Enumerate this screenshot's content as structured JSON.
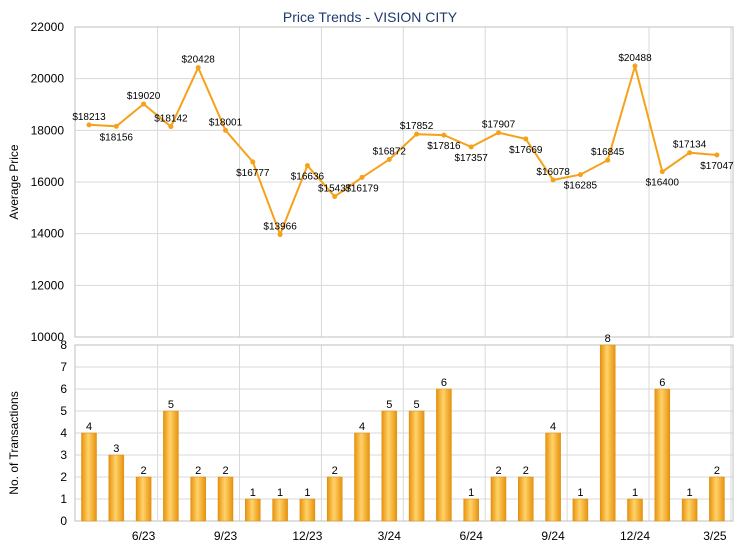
{
  "chart_data": [
    {
      "type": "line",
      "title": "Price Trends - VISION CITY",
      "ylabel": "Average Price",
      "ylim": [
        10000,
        22000
      ],
      "yticks": [
        10000,
        12000,
        14000,
        16000,
        18000,
        20000,
        22000
      ],
      "grid": true,
      "color": "#f5a21a",
      "series": [
        {
          "values": [
            18213,
            18156,
            19020,
            18142,
            20428,
            18001,
            16777,
            13966,
            16636,
            15437,
            16179,
            16872,
            17852,
            17816,
            17357,
            17907,
            17669,
            16078,
            16285,
            16845,
            20488,
            16400,
            17134,
            17047
          ],
          "labels": [
            "$18213",
            "$18156",
            "$19020",
            "$18142",
            "$20428",
            "$18001",
            "$16777",
            "$13966",
            "$16636",
            "$15437",
            "$16179",
            "$16872",
            "$17852",
            "$17816",
            "$17357",
            "$17907",
            "$17669",
            "$16078",
            "$16285",
            "$16845",
            "$20488",
            "$16400",
            "$17134",
            "$17047"
          ]
        }
      ]
    },
    {
      "type": "bar",
      "ylabel": "No. of Transactions",
      "ylim": [
        0,
        8
      ],
      "yticks": [
        0,
        1,
        2,
        3,
        4,
        5,
        6,
        7,
        8
      ],
      "xticks": [
        "6/23",
        "9/23",
        "12/23",
        "3/24",
        "6/24",
        "9/24",
        "12/24",
        "3/25"
      ],
      "grid": true,
      "color": "#f5a21a",
      "values": [
        4,
        3,
        2,
        5,
        2,
        2,
        1,
        1,
        1,
        2,
        4,
        5,
        5,
        6,
        1,
        2,
        2,
        4,
        1,
        8,
        1,
        6,
        1,
        2
      ]
    }
  ]
}
